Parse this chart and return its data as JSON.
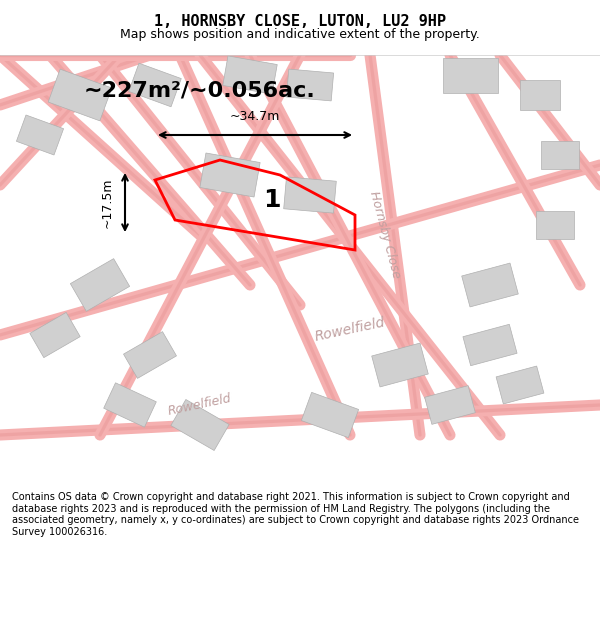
{
  "title": "1, HORNSBY CLOSE, LUTON, LU2 9HP",
  "subtitle": "Map shows position and indicative extent of the property.",
  "area_text": "~227m²/~0.056ac.",
  "width_label": "~34.7m",
  "height_label": "~17.5m",
  "plot_number": "1",
  "footer": "Contains OS data © Crown copyright and database right 2021. This information is subject to Crown copyright and database rights 2023 and is reproduced with the permission of HM Land Registry. The polygons (including the associated geometry, namely x, y co-ordinates) are subject to Crown copyright and database rights 2023 Ordnance Survey 100026316.",
  "bg_color": "#f5f5f5",
  "map_bg": "#ffffff",
  "road_color_light": "#f5a0a0",
  "road_color_medium": "#e08080",
  "building_color": "#d0d0d0",
  "building_edge": "#b0b0b0",
  "plot_color": "#ff0000",
  "plot_fill": "none",
  "street_label_1": "Hornsby Close",
  "street_label_2": "Rowelfield",
  "title_fontsize": 11,
  "subtitle_fontsize": 9,
  "area_fontsize": 15,
  "footer_fontsize": 7
}
